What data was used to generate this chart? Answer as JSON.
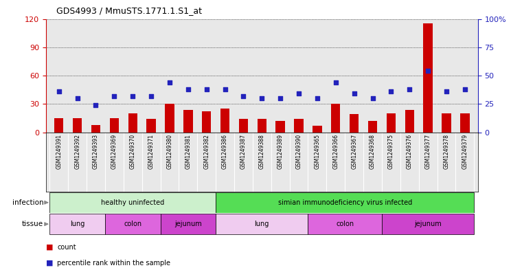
{
  "title": "GDS4993 / MmuSTS.1771.1.S1_at",
  "samples": [
    "GSM1249391",
    "GSM1249392",
    "GSM1249393",
    "GSM1249369",
    "GSM1249370",
    "GSM1249371",
    "GSM1249380",
    "GSM1249381",
    "GSM1249382",
    "GSM1249386",
    "GSM1249387",
    "GSM1249388",
    "GSM1249389",
    "GSM1249390",
    "GSM1249365",
    "GSM1249366",
    "GSM1249367",
    "GSM1249368",
    "GSM1249375",
    "GSM1249376",
    "GSM1249377",
    "GSM1249378",
    "GSM1249379"
  ],
  "counts": [
    15,
    15,
    8,
    15,
    20,
    14,
    30,
    24,
    22,
    25,
    14,
    14,
    12,
    14,
    7,
    30,
    19,
    12,
    20,
    24,
    115,
    20,
    20
  ],
  "percentiles": [
    36,
    30,
    24,
    32,
    32,
    32,
    44,
    38,
    38,
    38,
    32,
    30,
    30,
    34,
    30,
    44,
    34,
    30,
    36,
    38,
    54,
    36,
    38
  ],
  "left_ylim": [
    0,
    120
  ],
  "right_ylim": [
    0,
    100
  ],
  "left_yticks": [
    0,
    30,
    60,
    90,
    120
  ],
  "right_yticks": [
    0,
    25,
    50,
    75,
    100
  ],
  "right_yticklabels": [
    "0",
    "25",
    "50",
    "75",
    "100%"
  ],
  "bar_color": "#cc0000",
  "dot_color": "#2222bb",
  "plot_bg": "#e8e8e8",
  "infection_groups": [
    {
      "label": "healthy uninfected",
      "start": 0,
      "end": 8,
      "color": "#ccf0cc"
    },
    {
      "label": "simian immunodeficiency virus infected",
      "start": 9,
      "end": 22,
      "color": "#55dd55"
    }
  ],
  "tissue_groups": [
    {
      "label": "lung",
      "start": 0,
      "end": 2,
      "color": "#f0ccf0"
    },
    {
      "label": "colon",
      "start": 3,
      "end": 5,
      "color": "#dd66dd"
    },
    {
      "label": "jejunum",
      "start": 6,
      "end": 8,
      "color": "#cc44cc"
    },
    {
      "label": "lung",
      "start": 9,
      "end": 13,
      "color": "#f0ccf0"
    },
    {
      "label": "colon",
      "start": 14,
      "end": 17,
      "color": "#dd66dd"
    },
    {
      "label": "jejunum",
      "start": 18,
      "end": 22,
      "color": "#cc44cc"
    }
  ],
  "bar_width": 0.5
}
